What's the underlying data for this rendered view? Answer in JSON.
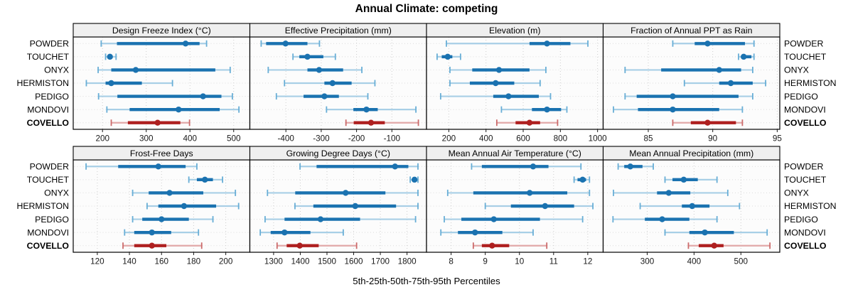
{
  "title": "Annual Climate: competing",
  "footer": "5th-25th-50th-75th-95th Percentiles",
  "sites": [
    "POWDER",
    "TOUCHET",
    "ONYX",
    "HERMISTON",
    "PEDIGO",
    "MONDOVI",
    "COVELLO"
  ],
  "highlight_site": "COVELLO",
  "percentile_labels": [
    "5th",
    "25th",
    "50th",
    "75th",
    "95th"
  ],
  "colors": {
    "normal_dark": "#1a72b0",
    "normal_light": "#a8cfe6",
    "normal_cap": "#68aed6",
    "highlight_dark": "#ae1f1f",
    "highlight_light": "#e2a9a9",
    "highlight_cap": "#cc6b6b",
    "strip_bg": "#efefef",
    "panel_bg": "#fcfcfc",
    "grid": "#cdcdcd",
    "row_guide": "#dcdcdc",
    "border": "#000000",
    "tick_text": "#1a1a1a"
  },
  "chart_data": {
    "type": "dotplot-percentiles",
    "layout": {
      "rows": 2,
      "cols": 4,
      "legend": "none",
      "grid": "dotted"
    },
    "panels": [
      {
        "title": "Design Freeze Index (°C)",
        "xlim": [
          133,
          537
        ],
        "ticks": [
          200,
          300,
          400,
          500
        ],
        "series": [
          [
            197,
            233,
            390,
            422,
            438
          ],
          [
            207,
            212,
            217,
            223,
            231
          ],
          [
            190,
            220,
            276,
            458,
            492
          ],
          [
            163,
            207,
            220,
            290,
            360
          ],
          [
            191,
            234,
            430,
            472,
            497
          ],
          [
            210,
            262,
            374,
            468,
            512
          ],
          [
            220,
            258,
            326,
            378,
            399
          ]
        ]
      },
      {
        "title": "Effective Precipitation (mm)",
        "xlim": [
          -502,
          -2
        ],
        "ticks": [
          -400,
          -300,
          -200,
          -100
        ],
        "series": [
          [
            -470,
            -456,
            -401,
            -339,
            -305
          ],
          [
            -380,
            -362,
            -339,
            -294,
            -260
          ],
          [
            -450,
            -339,
            -306,
            -238,
            -185
          ],
          [
            -404,
            -291,
            -268,
            -214,
            -148
          ],
          [
            -427,
            -350,
            -291,
            -250,
            -168
          ],
          [
            -285,
            -209,
            -172,
            -140,
            -32
          ],
          [
            -230,
            -208,
            -159,
            -120,
            -25
          ]
        ]
      },
      {
        "title": "Elevation (m)",
        "xlim": [
          80,
          1030
        ],
        "ticks": [
          200,
          400,
          600,
          800,
          1000
        ],
        "series": [
          [
            187,
            634,
            728,
            854,
            948
          ],
          [
            137,
            162,
            194,
            219,
            263
          ],
          [
            206,
            326,
            470,
            634,
            722
          ],
          [
            206,
            313,
            452,
            552,
            691
          ],
          [
            156,
            439,
            521,
            684,
            747
          ],
          [
            483,
            647,
            728,
            804,
            835
          ],
          [
            458,
            559,
            634,
            691,
            785
          ]
        ]
      },
      {
        "title": "Fraction of Annual PPT as Rain",
        "xlim": [
          81.5,
          95.2
        ],
        "ticks": [
          85,
          90,
          95
        ],
        "series": [
          [
            86.9,
            88.6,
            89.6,
            92.5,
            93.2
          ],
          [
            92.0,
            92.2,
            92.4,
            93.0,
            93.2
          ],
          [
            83.2,
            86.0,
            90.5,
            92.2,
            93.1
          ],
          [
            87.8,
            90.5,
            91.4,
            93.1,
            94.1
          ],
          [
            83.2,
            84.1,
            86.9,
            92.0,
            93.1
          ],
          [
            82.3,
            84.2,
            86.9,
            90.5,
            92.3
          ],
          [
            86.9,
            88.3,
            89.6,
            91.8,
            92.3
          ]
        ]
      },
      {
        "title": "Frost-Free Days",
        "xlim": [
          105,
          215
        ],
        "ticks": [
          120,
          140,
          160,
          180,
          200
        ],
        "series": [
          [
            113,
            133,
            158,
            175,
            182
          ],
          [
            177,
            182,
            187,
            192,
            198
          ],
          [
            142,
            152,
            165,
            186,
            206
          ],
          [
            151,
            158,
            174,
            194,
            208
          ],
          [
            142,
            148,
            160,
            177,
            192
          ],
          [
            137,
            143,
            154,
            166,
            183
          ],
          [
            136,
            143,
            154,
            163,
            185
          ]
        ]
      },
      {
        "title": "Growing Degree Days (°C)",
        "xlim": [
          1211,
          1873
        ],
        "ticks": [
          1300,
          1400,
          1500,
          1600,
          1700,
          1800
        ],
        "series": [
          [
            1399,
            1461,
            1755,
            1805,
            1841
          ],
          [
            1812,
            1820,
            1828,
            1835,
            1841
          ],
          [
            1277,
            1381,
            1570,
            1719,
            1841
          ],
          [
            1380,
            1449,
            1606,
            1759,
            1841
          ],
          [
            1268,
            1341,
            1476,
            1624,
            1832
          ],
          [
            1250,
            1289,
            1341,
            1438,
            1561
          ],
          [
            1313,
            1349,
            1398,
            1469,
            1611
          ]
        ]
      },
      {
        "title": "Mean Annual Air Temperature (°C)",
        "xlim": [
          7.28,
          12.45
        ],
        "ticks": [
          8,
          9,
          10,
          11,
          12
        ],
        "series": [
          [
            8.6,
            8.9,
            10.4,
            10.85,
            11.8
          ],
          [
            11.6,
            11.7,
            11.85,
            11.95,
            12.05
          ],
          [
            7.9,
            8.65,
            10.3,
            11.4,
            12.05
          ],
          [
            9.0,
            9.75,
            10.75,
            11.6,
            12.15
          ],
          [
            7.8,
            8.3,
            9.25,
            10.6,
            11.85
          ],
          [
            7.7,
            8.2,
            8.7,
            9.5,
            10.4
          ],
          [
            8.65,
            8.9,
            9.2,
            9.7,
            10.8
          ]
        ]
      },
      {
        "title": "Mean Annual Precipitation (mm)",
        "xlim": [
          206,
          583
        ],
        "ticks": [
          300,
          400,
          500
        ],
        "series": [
          [
            238,
            251,
            264,
            290,
            313
          ],
          [
            338,
            354,
            378,
            408,
            449
          ],
          [
            228,
            321,
            346,
            392,
            472
          ],
          [
            285,
            374,
            396,
            433,
            497
          ],
          [
            227,
            295,
            332,
            390,
            449
          ],
          [
            338,
            390,
            423,
            485,
            556
          ],
          [
            388,
            410,
            443,
            463,
            562
          ]
        ]
      }
    ]
  }
}
